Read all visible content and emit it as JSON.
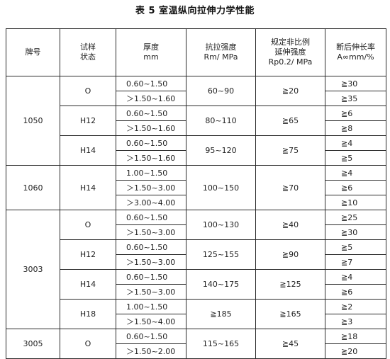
{
  "title": "表 5   室温纵向拉伸力学性能",
  "headers": {
    "grade": "牌号",
    "temper": [
      "试样",
      "状态"
    ],
    "thickness": [
      "厚度",
      "mm"
    ],
    "tensile": [
      "抗拉强度",
      "Rm/ MPa"
    ],
    "yield": [
      "规定非比例",
      "延伸强度",
      "Rp0.2/ MPa"
    ],
    "elong": [
      "断后伸长率",
      "A∞mm/%"
    ]
  },
  "grades": [
    {
      "name": "1050",
      "tempers": [
        {
          "name": "O",
          "rows": [
            {
              "thk": "0.60~1.50",
              "elong": "≧30"
            },
            {
              "thk": "＞1.50~1.60",
              "elong": "≧35"
            }
          ],
          "rm": "60~90",
          "rp": "≧20"
        },
        {
          "name": "H12",
          "rows": [
            {
              "thk": "0.60~1.50",
              "elong": "≧6"
            },
            {
              "thk": "＞1.50~1.60",
              "elong": "≧8"
            }
          ],
          "rm": "80~110",
          "rp": "≧65"
        },
        {
          "name": "H14",
          "rows": [
            {
              "thk": "0.60~1.50",
              "elong": "≧4"
            },
            {
              "thk": "＞1.50~1.60",
              "elong": "≧5"
            }
          ],
          "rm": "95~120",
          "rp": "≧75"
        }
      ]
    },
    {
      "name": "1060",
      "tempers": [
        {
          "name": "H14",
          "rows": [
            {
              "thk": "1.00~1.50",
              "elong": "≧4"
            },
            {
              "thk": "＞1.50~3.00",
              "elong": "≧6"
            },
            {
              "thk": "＞3.00~4.00",
              "elong": "≧10"
            }
          ],
          "rm": "100~150",
          "rp": "≧70"
        }
      ]
    },
    {
      "name": "3003",
      "tempers": [
        {
          "name": "O",
          "rows": [
            {
              "thk": "0.60~1.50",
              "elong": "≧25"
            },
            {
              "thk": "＞1.50~3.00",
              "elong": "≧30"
            }
          ],
          "rm": "100~130",
          "rp": "≧40"
        },
        {
          "name": "H12",
          "rows": [
            {
              "thk": "0.60~1.50",
              "elong": "≧5"
            },
            {
              "thk": "＞1.50~3.00",
              "elong": "≧7"
            }
          ],
          "rm": "125~155",
          "rp": "≧90"
        },
        {
          "name": "H14",
          "rows": [
            {
              "thk": "0.60~1.50",
              "elong": "≧4"
            },
            {
              "thk": "＞1.50~3.00",
              "elong": "≧6"
            }
          ],
          "rm": "140~175",
          "rp": "≧125"
        },
        {
          "name": "H18",
          "rows": [
            {
              "thk": "1.00~1.50",
              "elong": "≧2"
            },
            {
              "thk": "＞1.50~4.00",
              "elong": "≧3"
            }
          ],
          "rm": "≧185",
          "rp": "≧165"
        }
      ]
    },
    {
      "name": "3005",
      "tempers": [
        {
          "name": "O",
          "rows": [
            {
              "thk": "0.60~1.50",
              "elong": "≧18"
            },
            {
              "thk": "＞1.50~2.00",
              "elong": "≧20"
            }
          ],
          "rm": "115~165",
          "rp": "≧45"
        }
      ]
    }
  ]
}
